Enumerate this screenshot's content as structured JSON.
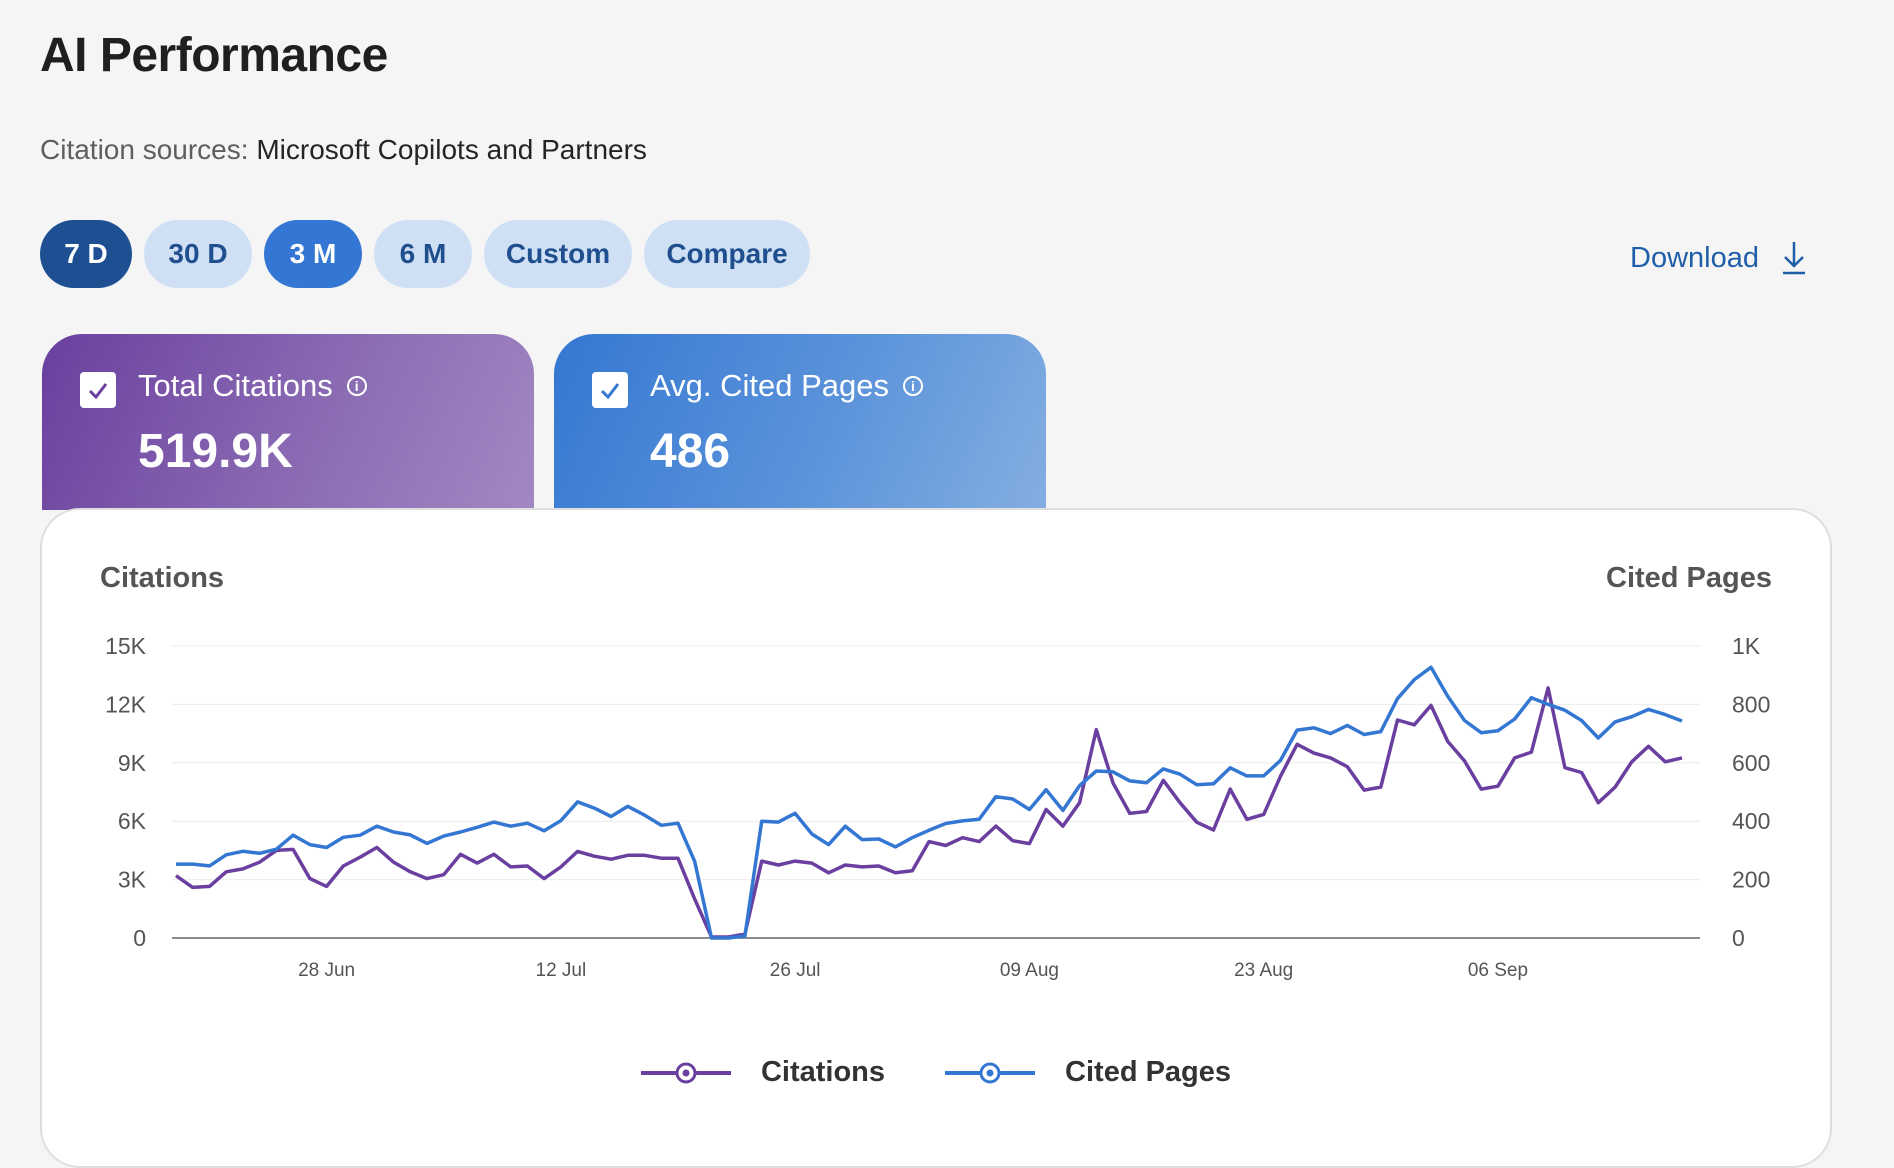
{
  "page": {
    "title": "AI Performance"
  },
  "sources": {
    "label": "Citation sources:",
    "value": "Microsoft Copilots and Partners"
  },
  "ranges": [
    "7 D",
    "30 D",
    "3 M",
    "6 M",
    "Custom",
    "Compare"
  ],
  "download": {
    "label": "Download"
  },
  "cards": [
    {
      "label": "Total Citations",
      "value": "519.9K",
      "checked": true,
      "color": "#6a3f9f"
    },
    {
      "label": "Avg. Cited Pages",
      "value": "486",
      "checked": true,
      "color": "#3477d2"
    }
  ],
  "chart_data": {
    "type": "line",
    "left_axis_title": "Citations",
    "right_axis_title": "Cited Pages",
    "left_ticks": [
      "0",
      "3K",
      "6K",
      "9K",
      "12K",
      "15K"
    ],
    "right_ticks": [
      "0",
      "200",
      "400",
      "600",
      "800",
      "1K"
    ],
    "ylim_left": [
      0,
      15000
    ],
    "ylim_right": [
      0,
      1000
    ],
    "x_tick_labels": [
      "28 Jun",
      "12 Jul",
      "26 Jul",
      "09 Aug",
      "23 Aug",
      "06 Sep"
    ],
    "x_tick_index": [
      9,
      23,
      37,
      51,
      65,
      79
    ],
    "grid": true,
    "legend_position": "bottom",
    "series": [
      {
        "name": "Citations",
        "axis": "left",
        "color": "#6a3f9f",
        "values": [
          3200,
          2600,
          2650,
          3400,
          3550,
          3900,
          4500,
          4550,
          3050,
          2650,
          3700,
          4150,
          4650,
          3900,
          3400,
          3050,
          3250,
          4300,
          3850,
          4300,
          3650,
          3700,
          3050,
          3650,
          4450,
          4200,
          4050,
          4250,
          4250,
          4100,
          4100,
          2000,
          50,
          50,
          200,
          3950,
          3750,
          3950,
          3850,
          3350,
          3750,
          3650,
          3700,
          3350,
          3450,
          4950,
          4750,
          5150,
          4950,
          5750,
          5000,
          4850,
          6600,
          5750,
          6950,
          10700,
          7950,
          6400,
          6500,
          8100,
          6950,
          5950,
          5550,
          7650,
          6100,
          6350,
          8300,
          9950,
          9500,
          9250,
          8800,
          7600,
          7750,
          11200,
          10950,
          11950,
          10100,
          9100,
          7650,
          7800,
          9250,
          9550,
          12850,
          8750,
          8500,
          6950,
          7750,
          9050,
          9850,
          9050,
          9250
        ]
      },
      {
        "name": "Cited Pages",
        "axis": "right",
        "color": "#3477d2",
        "values": [
          253,
          253,
          247,
          285,
          297,
          290,
          304,
          352,
          320,
          310,
          345,
          352,
          383,
          363,
          353,
          324,
          349,
          363,
          379,
          397,
          383,
          393,
          367,
          402,
          466,
          445,
          416,
          451,
          421,
          386,
          393,
          262,
          0,
          0,
          7,
          400,
          397,
          427,
          356,
          320,
          383,
          337,
          339,
          312,
          344,
          369,
          392,
          401,
          407,
          484,
          476,
          440,
          508,
          437,
          522,
          572,
          569,
          538,
          532,
          579,
          561,
          525,
          528,
          583,
          555,
          555,
          608,
          712,
          720,
          700,
          728,
          697,
          707,
          820,
          885,
          927,
          828,
          745,
          703,
          710,
          750,
          823,
          800,
          780,
          745,
          685,
          740,
          758,
          783,
          765,
          743
        ]
      }
    ]
  }
}
